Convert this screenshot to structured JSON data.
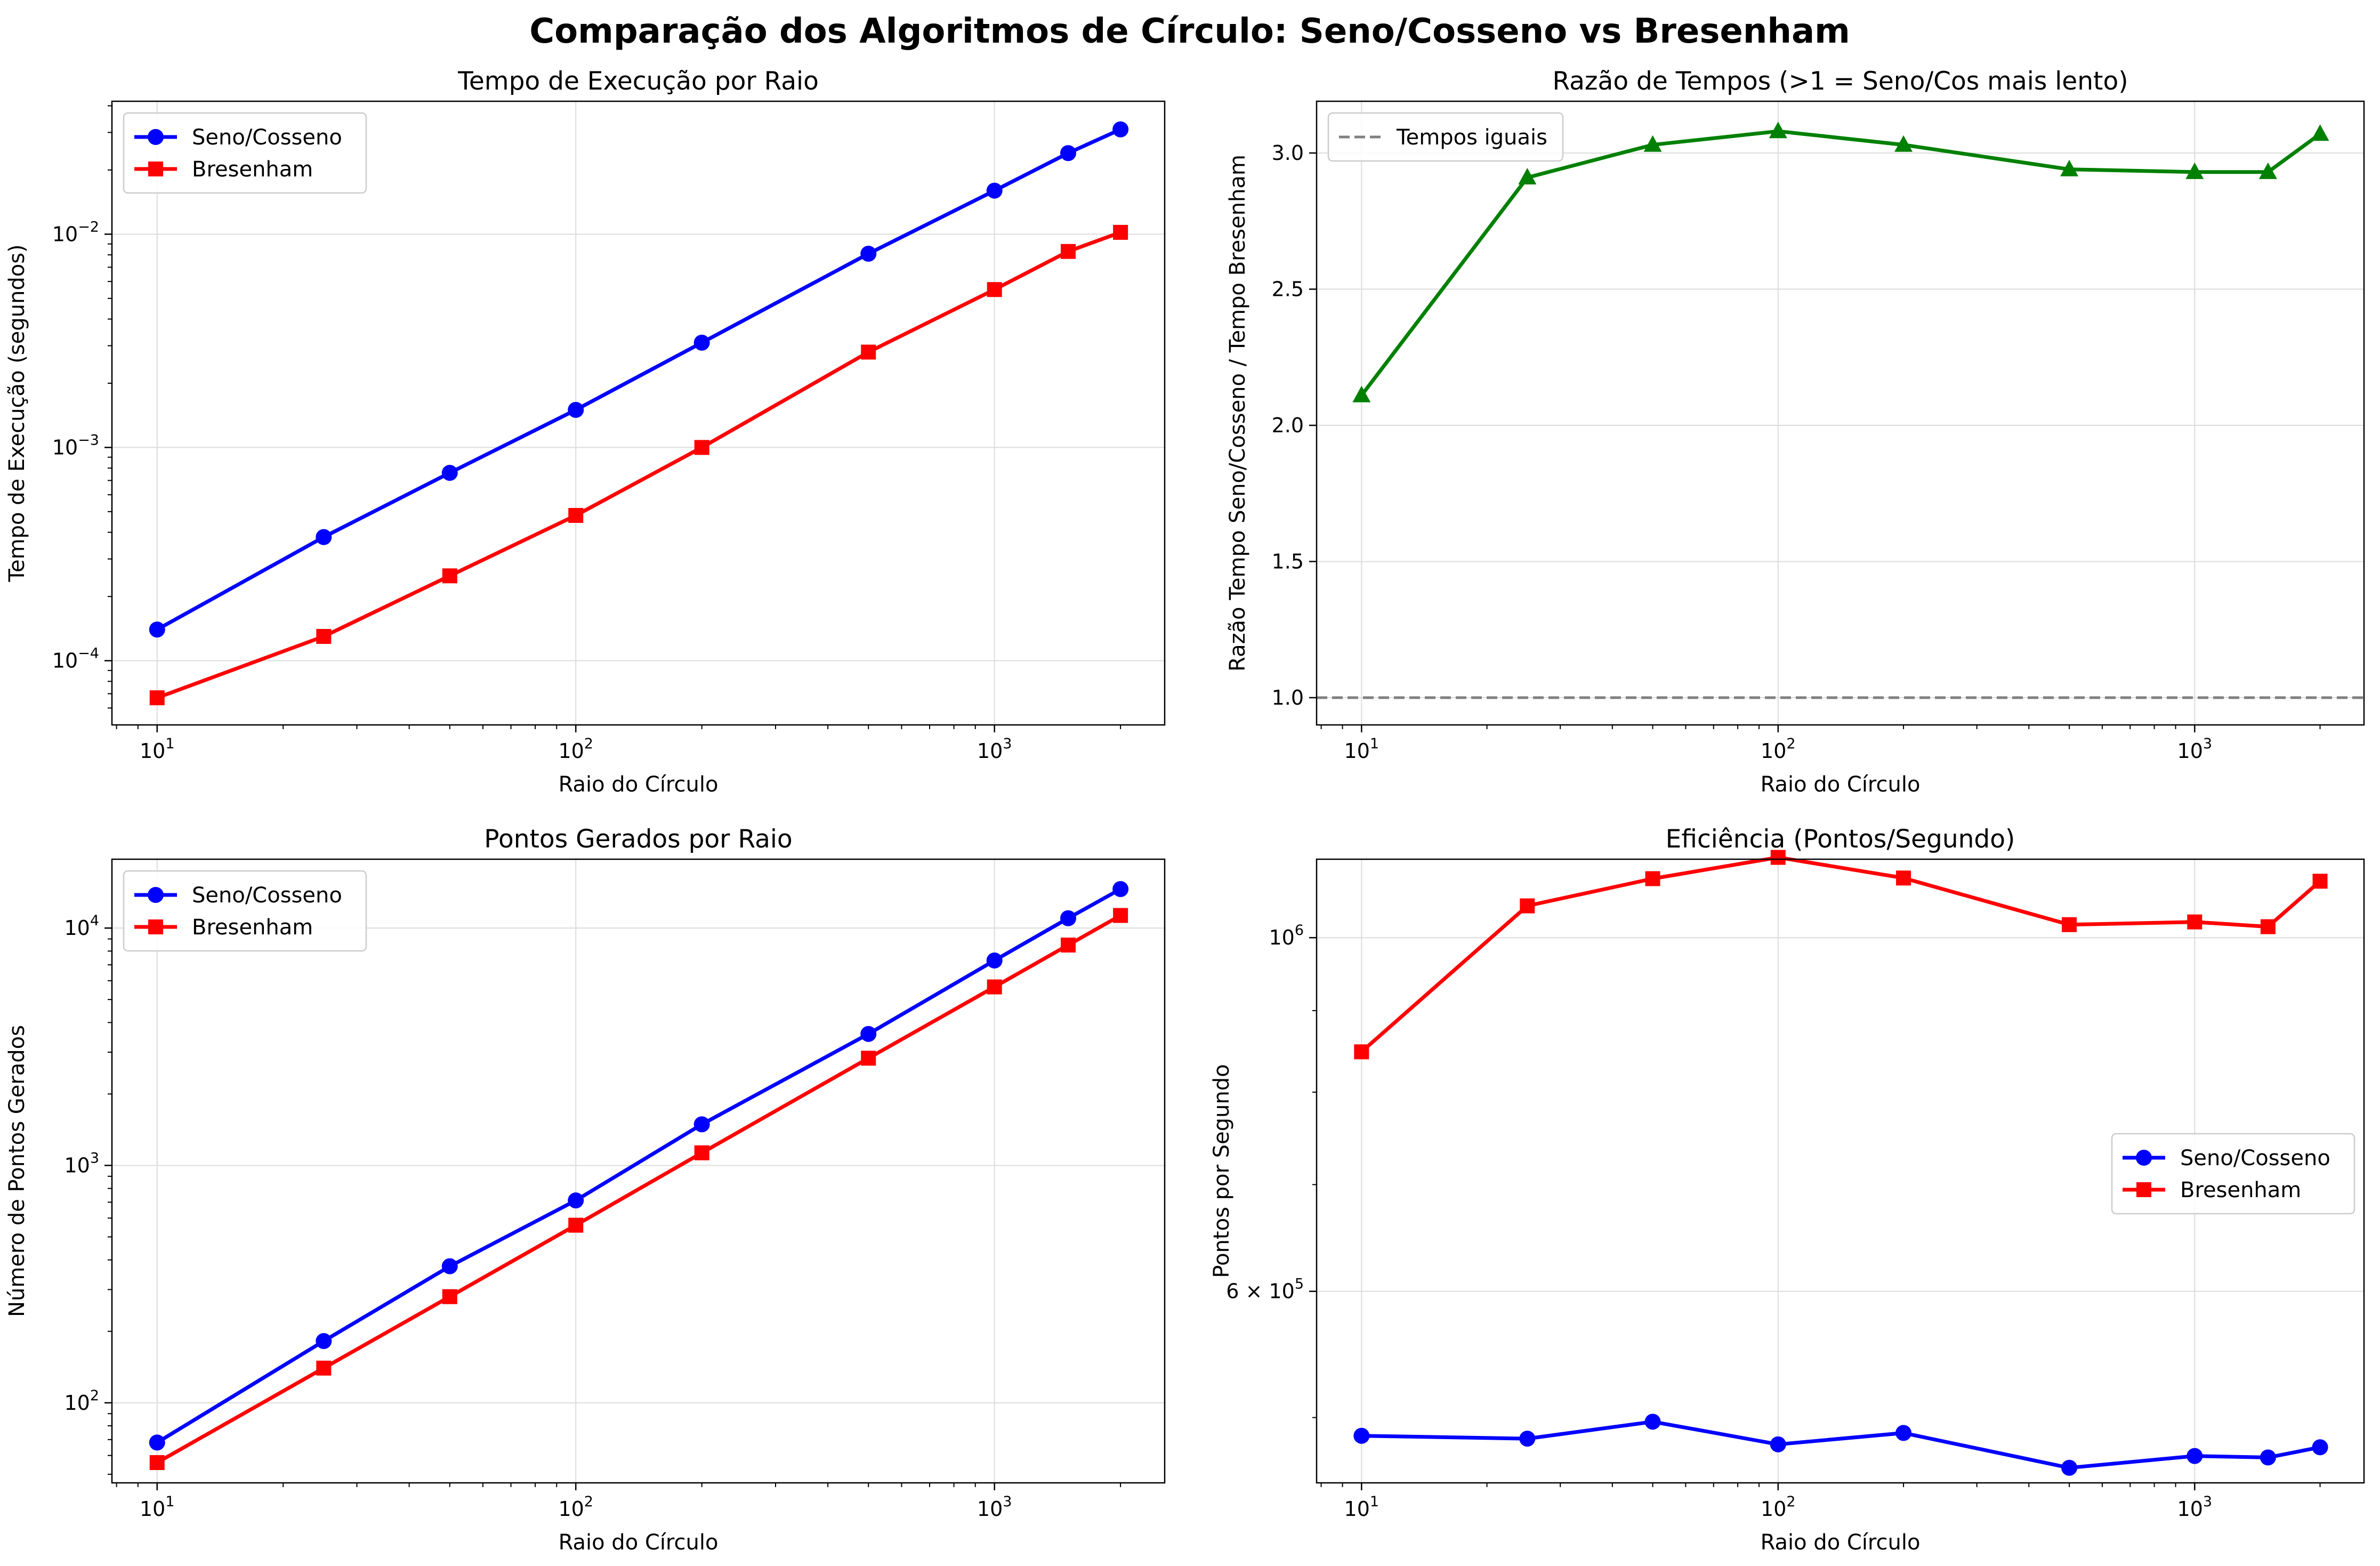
{
  "figure": {
    "suptitle": "Comparação dos Algoritmos de Círculo: Seno/Cosseno vs Bresenham"
  },
  "colors": {
    "seno": "#0000ff",
    "bresenham": "#ff0000",
    "ratio": "#008000",
    "reference": "#808080"
  },
  "chart_data": [
    {
      "id": "tempo",
      "type": "line",
      "title": "Tempo de Execução por Raio",
      "xlabel": "Raio do Círculo",
      "ylabel": "Tempo de Execução (segundos)",
      "xscale": "log",
      "yscale": "log",
      "xlim": [
        7.8,
        2550
      ],
      "ylim": [
        5e-05,
        0.042
      ],
      "xticks": [
        {
          "value": 10,
          "base": "10",
          "exp": "1"
        },
        {
          "value": 100,
          "base": "10",
          "exp": "2"
        },
        {
          "value": 1000,
          "base": "10",
          "exp": "3"
        }
      ],
      "yticks": [
        {
          "value": 0.0001,
          "base": "10",
          "exp": "−4"
        },
        {
          "value": 0.001,
          "base": "10",
          "exp": "−3"
        },
        {
          "value": 0.01,
          "base": "10",
          "exp": "−2"
        }
      ],
      "grid": true,
      "legend": "upper left",
      "x": [
        10,
        25,
        50,
        100,
        200,
        500,
        1000,
        1500,
        2000
      ],
      "series": [
        {
          "name": "Seno/Cosseno",
          "color": "#0000ff",
          "marker": "circle",
          "values": [
            0.00014,
            0.00038,
            0.00076,
            0.0015,
            0.0031,
            0.0081,
            0.016,
            0.024,
            0.031
          ]
        },
        {
          "name": "Bresenham",
          "color": "#ff0000",
          "marker": "square",
          "values": [
            6.7e-05,
            0.00013,
            0.00025,
            0.00048,
            0.001,
            0.0028,
            0.0055,
            0.0083,
            0.0102
          ]
        }
      ]
    },
    {
      "id": "razao",
      "type": "line",
      "title": "Razão de Tempos (>1 = Seno/Cos mais lento)",
      "xlabel": "Raio do Círculo",
      "ylabel": "Razão Tempo Seno/Cosseno / Tempo Bresenham",
      "xscale": "log",
      "yscale": "linear",
      "xlim": [
        7.8,
        2550
      ],
      "ylim": [
        0.9,
        3.19
      ],
      "xticks": [
        {
          "value": 10,
          "base": "10",
          "exp": "1"
        },
        {
          "value": 100,
          "base": "10",
          "exp": "2"
        },
        {
          "value": 1000,
          "base": "10",
          "exp": "3"
        }
      ],
      "yticks": [
        {
          "value": 1.0,
          "label": "1.0"
        },
        {
          "value": 1.5,
          "label": "1.5"
        },
        {
          "value": 2.0,
          "label": "2.0"
        },
        {
          "value": 2.5,
          "label": "2.5"
        },
        {
          "value": 3.0,
          "label": "3.0"
        }
      ],
      "grid": true,
      "legend": "upper left",
      "x": [
        10,
        25,
        50,
        100,
        200,
        500,
        1000,
        1500,
        2000
      ],
      "series": [
        {
          "name": "",
          "color": "#008000",
          "marker": "triangle",
          "values": [
            2.11,
            2.91,
            3.03,
            3.08,
            3.03,
            2.94,
            2.93,
            2.93,
            3.07
          ]
        }
      ],
      "reference_line": {
        "y": 1.0,
        "label": "Tempos iguais",
        "color": "#808080"
      }
    },
    {
      "id": "pontos",
      "type": "line",
      "title": "Pontos Gerados por Raio",
      "xlabel": "Raio do Círculo",
      "ylabel": "Número de Pontos Gerados",
      "xscale": "log",
      "yscale": "log",
      "xlim": [
        7.8,
        2550
      ],
      "ylim": [
        46,
        19500
      ],
      "xticks": [
        {
          "value": 10,
          "base": "10",
          "exp": "1"
        },
        {
          "value": 100,
          "base": "10",
          "exp": "2"
        },
        {
          "value": 1000,
          "base": "10",
          "exp": "3"
        }
      ],
      "yticks": [
        {
          "value": 100,
          "base": "10",
          "exp": "2"
        },
        {
          "value": 1000,
          "base": "10",
          "exp": "3"
        },
        {
          "value": 10000,
          "base": "10",
          "exp": "4"
        }
      ],
      "grid": true,
      "legend": "upper left",
      "x": [
        10,
        25,
        50,
        100,
        200,
        500,
        1000,
        1500,
        2000
      ],
      "series": [
        {
          "name": "Seno/Cosseno",
          "color": "#0000ff",
          "marker": "circle",
          "values": [
            68,
            182,
            376,
            712,
            1490,
            3580,
            7300,
            11000,
            14600
          ]
        },
        {
          "name": "Bresenham",
          "color": "#ff0000",
          "marker": "square",
          "values": [
            56,
            140,
            280,
            560,
            1130,
            2830,
            5650,
            8480,
            11300
          ]
        }
      ]
    },
    {
      "id": "eficiencia",
      "type": "line",
      "title": "Eficiência (Pontos/Segundo)",
      "xlabel": "Raio do Círculo",
      "ylabel": "Pontos por Segundo",
      "xscale": "log",
      "yscale": "log",
      "xlim": [
        7.8,
        2550
      ],
      "ylim": [
        455000,
        1120000
      ],
      "xticks": [
        {
          "value": 10,
          "base": "10",
          "exp": "1"
        },
        {
          "value": 100,
          "base": "10",
          "exp": "2"
        },
        {
          "value": 1000,
          "base": "10",
          "exp": "3"
        }
      ],
      "yticks": [
        {
          "value": 600000,
          "base": "6 × 10",
          "exp": "5"
        },
        {
          "value": 1000000,
          "base": "10",
          "exp": "6"
        }
      ],
      "grid": true,
      "legend": "center right",
      "x": [
        10,
        25,
        50,
        100,
        200,
        500,
        1000,
        1500,
        2000
      ],
      "series": [
        {
          "name": "Seno/Cosseno",
          "color": "#0000ff",
          "marker": "circle",
          "values": [
            487000,
            485000,
            497000,
            481000,
            489000,
            465000,
            473000,
            472000,
            479000
          ]
        },
        {
          "name": "Bresenham",
          "color": "#ff0000",
          "marker": "square",
          "values": [
            848000,
            1047000,
            1089000,
            1123000,
            1090000,
            1019000,
            1023000,
            1016000,
            1085000
          ]
        }
      ]
    }
  ]
}
